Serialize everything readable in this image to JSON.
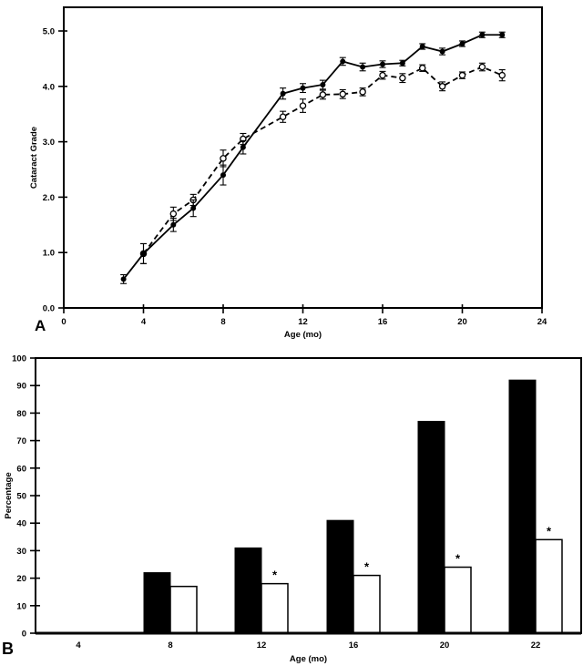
{
  "figure": {
    "panels": [
      {
        "letter": "A"
      },
      {
        "letter": "B"
      }
    ]
  },
  "chart_data": [
    {
      "type": "line",
      "panel": "A",
      "title": "",
      "xlabel": "Age (mo)",
      "ylabel": "Cataract Grade",
      "xlim": [
        0,
        24
      ],
      "ylim": [
        0,
        5.43
      ],
      "xticks": [
        0,
        4,
        8,
        12,
        16,
        20,
        24
      ],
      "xtick_labels": [
        "0",
        "4",
        "8",
        "12",
        "16",
        "20",
        "24"
      ],
      "ytick_values": [
        0,
        1,
        2,
        3,
        4,
        5
      ],
      "ytick_labels": [
        "0.0",
        "1.0",
        "2.0",
        "3.0",
        "4.0",
        "5.0"
      ],
      "grid": false,
      "legend": "none",
      "frame": "full-box",
      "series": [
        {
          "name": "dashed-open-circles",
          "line_style": "dashed",
          "marker": "open-circle",
          "color": "#000000",
          "x": [
            4,
            5.5,
            6.5,
            8,
            9,
            11,
            12,
            13,
            14,
            15,
            16,
            17,
            18,
            19,
            20,
            21,
            22
          ],
          "y": [
            0.98,
            1.7,
            1.95,
            2.7,
            3.05,
            3.45,
            3.65,
            3.85,
            3.86,
            3.9,
            4.2,
            4.15,
            4.33,
            4.0,
            4.2,
            4.35,
            4.2
          ],
          "err": [
            0.18,
            0.12,
            0.1,
            0.15,
            0.1,
            0.1,
            0.12,
            0.08,
            0.08,
            0.07,
            0.07,
            0.08,
            0.06,
            0.08,
            0.06,
            0.07,
            0.1
          ]
        },
        {
          "name": "solid-filled-circles",
          "line_style": "solid",
          "marker": "filled-circle",
          "color": "#000000",
          "x": [
            3,
            4,
            5.5,
            6.5,
            8,
            9,
            11,
            12,
            13,
            14,
            15,
            16,
            17,
            18,
            19,
            20,
            21,
            22
          ],
          "y": [
            0.52,
            0.98,
            1.5,
            1.8,
            2.4,
            2.9,
            3.87,
            3.97,
            4.03,
            4.45,
            4.35,
            4.4,
            4.42,
            4.72,
            4.63,
            4.77,
            4.93,
            4.93
          ],
          "err": [
            0.08,
            0.18,
            0.12,
            0.15,
            0.18,
            0.12,
            0.1,
            0.08,
            0.08,
            0.07,
            0.07,
            0.06,
            0.05,
            0.05,
            0.06,
            0.05,
            0.05,
            0.05
          ]
        }
      ]
    },
    {
      "type": "bar",
      "panel": "B",
      "title": "",
      "xlabel": "Age (mo)",
      "ylabel": "Percentage",
      "ylim": [
        0,
        100
      ],
      "ytick_values": [
        0,
        10,
        20,
        30,
        40,
        50,
        60,
        70,
        80,
        90,
        100
      ],
      "ytick_labels": [
        "0",
        "10",
        "20",
        "30",
        "40",
        "50",
        "60",
        "70",
        "80",
        "90",
        "100"
      ],
      "categories": [
        "4",
        "8",
        "12",
        "16",
        "20",
        "22"
      ],
      "grid": false,
      "legend": "none",
      "frame": "full-box",
      "series": [
        {
          "name": "black-bars",
          "fill": "#000000",
          "stroke": "#000000",
          "values": [
            0,
            22,
            31,
            41,
            77,
            92
          ],
          "asterisk": [
            false,
            false,
            false,
            false,
            false,
            false
          ]
        },
        {
          "name": "white-bars",
          "fill": "#ffffff",
          "stroke": "#000000",
          "values": [
            0,
            17,
            18,
            21,
            24,
            34
          ],
          "asterisk": [
            false,
            false,
            true,
            true,
            true,
            true
          ]
        }
      ],
      "annotation_symbol": "*"
    }
  ]
}
